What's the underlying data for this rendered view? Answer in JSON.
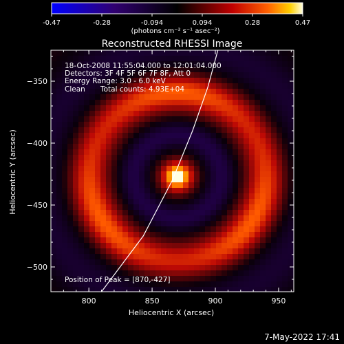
{
  "colorbar": {
    "ticks": [
      "-0.47",
      "-0.28",
      "-0.094",
      "0.094",
      "0.28",
      "0.47"
    ],
    "range": [
      -0.47,
      0.47
    ],
    "units_label": "(photons cm⁻² s⁻¹ asec⁻²)"
  },
  "chart_data": {
    "type": "heatmap",
    "title": "Reconstructed RHESSI Image",
    "xlabel": "Heliocentric X (arcsec)",
    "ylabel": "Heliocentric Y (arcsec)",
    "xlim": [
      770,
      962
    ],
    "ylim": [
      -520,
      -325
    ],
    "x_ticks": [
      800,
      850,
      900,
      950
    ],
    "y_ticks": [
      -350,
      -400,
      -450,
      -500
    ],
    "x_tick_labels": [
      "800",
      "850",
      "900",
      "950"
    ],
    "y_tick_labels": [
      "−350",
      "−400",
      "−450",
      "−500"
    ],
    "peak": {
      "x": 870,
      "y": -427
    },
    "annotations": {
      "time": "18-Oct-2008 11:55:04.000 to 12:01:04.000",
      "detectors": "Detectors: 3F 4F 5F 6F 7F 8F, Att 0",
      "energy": "Energy Range: 3.0 - 6.0 keV",
      "clean": "Clean",
      "counts": "Total counts: 4.93E+04",
      "peak_text": "Position of Peak = [870,-427]"
    },
    "limb_curve": [
      [
        810,
        -520
      ],
      [
        843,
        -475
      ],
      [
        866,
        -430
      ],
      [
        882,
        -390
      ],
      [
        894,
        -355
      ],
      [
        902,
        -325
      ]
    ]
  },
  "footer": {
    "timestamp": "7-May-2022 17:41"
  }
}
